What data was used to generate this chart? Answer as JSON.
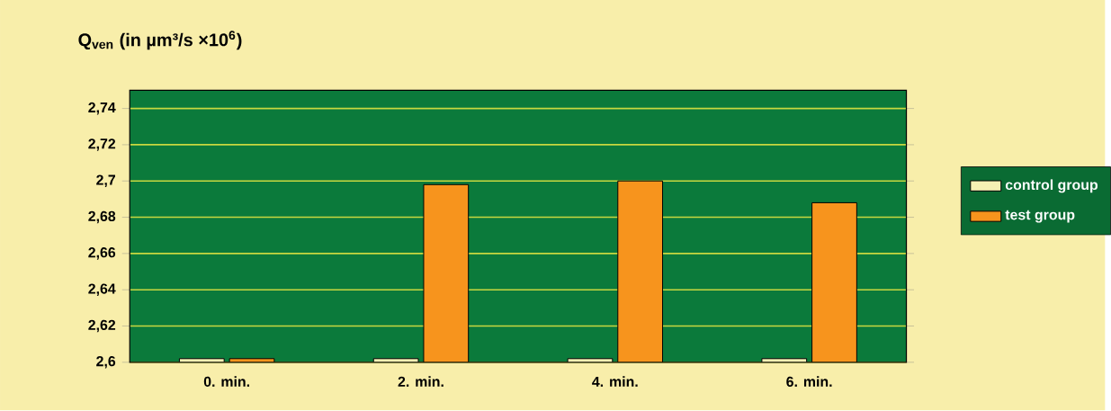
{
  "chart_data": {
    "type": "bar",
    "ylabel": "Q$_{ven}$ (in µm³/s ×10$^{6}$)",
    "categories": [
      "0. min.",
      "2. min.",
      "4. min.",
      "6. min."
    ],
    "series": [
      {
        "name": "control group",
        "color": "#f6f0b4",
        "values": [
          2.602,
          2.602,
          2.602,
          2.602
        ]
      },
      {
        "name": "test group",
        "color": "#f7941d",
        "values": [
          2.602,
          2.698,
          2.7,
          2.688
        ]
      }
    ],
    "ylim": [
      2.6,
      2.75
    ],
    "yticks": [
      {
        "value": 2.6,
        "label": "2,6"
      },
      {
        "value": 2.62,
        "label": "2,62"
      },
      {
        "value": 2.64,
        "label": "2,64"
      },
      {
        "value": 2.66,
        "label": "2,66"
      },
      {
        "value": 2.68,
        "label": "2,68"
      },
      {
        "value": 2.7,
        "label": "2,7"
      },
      {
        "value": 2.72,
        "label": "2,72"
      },
      {
        "value": 2.74,
        "label": "2,74"
      }
    ],
    "grid": "y",
    "legend": "right"
  }
}
